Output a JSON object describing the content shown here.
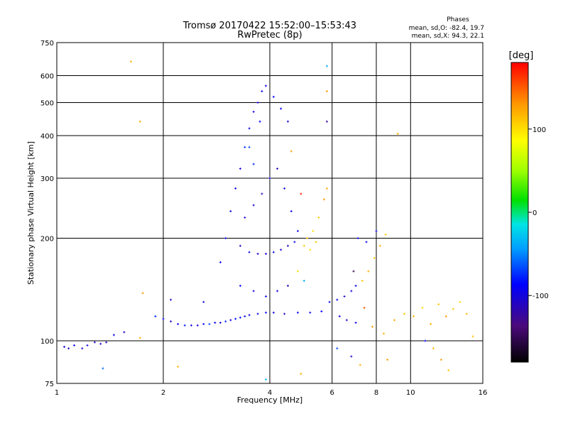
{
  "chart_data": {
    "type": "scatter",
    "title": "Tromsø 20170422 15:52:00–15:53:43",
    "subtitle": "RwPretec (8p)",
    "xlabel": "Frequency [MHz]",
    "ylabel": "Stationary phase Virtual Height [km]",
    "x_scale": "log",
    "y_scale": "log",
    "xlim": [
      1,
      16
    ],
    "ylim": [
      75,
      750
    ],
    "x_ticks": [
      1,
      2,
      4,
      6,
      8,
      10,
      16
    ],
    "x_tick_labels": [
      "1",
      "2",
      "4",
      "6",
      "8",
      "10",
      "16"
    ],
    "y_ticks": [
      75,
      100,
      200,
      300,
      400,
      500,
      600,
      750
    ],
    "y_tick_labels": [
      "75",
      "100",
      "200",
      "300",
      "400",
      "500",
      "600",
      "750"
    ],
    "grid": true,
    "phases": {
      "heading": "Phases",
      "o_line": "mean, sd,O: -82.4, 19.7",
      "x_line": "mean, sd,X: 94.3, 22.1"
    },
    "colorbar": {
      "unit": "[deg]",
      "range": [
        -180,
        180
      ],
      "ticks": [
        100,
        0,
        -100
      ],
      "tick_labels": [
        "100",
        "0",
        "-100"
      ]
    },
    "series": [
      {
        "values": [
          {
            "x": 1.05,
            "y": 96,
            "p": -100
          },
          {
            "x": 1.08,
            "y": 95,
            "p": -110
          },
          {
            "x": 1.12,
            "y": 97,
            "p": -95
          },
          {
            "x": 1.18,
            "y": 95,
            "p": -105
          },
          {
            "x": 1.22,
            "y": 97,
            "p": -100
          },
          {
            "x": 1.28,
            "y": 99,
            "p": -110
          },
          {
            "x": 1.33,
            "y": 98,
            "p": -100
          },
          {
            "x": 1.38,
            "y": 99,
            "p": -115
          },
          {
            "x": 1.45,
            "y": 104,
            "p": -100
          },
          {
            "x": 1.55,
            "y": 106,
            "p": -110
          },
          {
            "x": 1.72,
            "y": 102,
            "p": 120
          },
          {
            "x": 1.62,
            "y": 660,
            "p": 120
          },
          {
            "x": 1.72,
            "y": 440,
            "p": 120
          },
          {
            "x": 1.75,
            "y": 138,
            "p": 130
          },
          {
            "x": 1.9,
            "y": 118,
            "p": -80
          },
          {
            "x": 2.0,
            "y": 116,
            "p": -95
          },
          {
            "x": 2.1,
            "y": 114,
            "p": -110
          },
          {
            "x": 2.2,
            "y": 112,
            "p": -100
          },
          {
            "x": 2.3,
            "y": 111,
            "p": -85
          },
          {
            "x": 2.4,
            "y": 111,
            "p": -105
          },
          {
            "x": 2.5,
            "y": 111,
            "p": -100
          },
          {
            "x": 2.6,
            "y": 112,
            "p": -90
          },
          {
            "x": 2.7,
            "y": 112,
            "p": -70
          },
          {
            "x": 2.8,
            "y": 113,
            "p": -95
          },
          {
            "x": 2.9,
            "y": 113,
            "p": -100
          },
          {
            "x": 3.0,
            "y": 114,
            "p": -80
          },
          {
            "x": 3.1,
            "y": 115,
            "p": -100
          },
          {
            "x": 3.2,
            "y": 116,
            "p": -90
          },
          {
            "x": 3.3,
            "y": 117,
            "p": -85
          },
          {
            "x": 3.4,
            "y": 118,
            "p": -100
          },
          {
            "x": 3.5,
            "y": 119,
            "p": -95
          },
          {
            "x": 3.7,
            "y": 120,
            "p": -100
          },
          {
            "x": 3.9,
            "y": 121,
            "p": -90
          },
          {
            "x": 4.1,
            "y": 121,
            "p": -100
          },
          {
            "x": 4.4,
            "y": 120,
            "p": -110
          },
          {
            "x": 4.8,
            "y": 121,
            "p": -95
          },
          {
            "x": 5.2,
            "y": 121,
            "p": -100
          },
          {
            "x": 5.6,
            "y": 122,
            "p": -90
          },
          {
            "x": 2.1,
            "y": 132,
            "p": -110
          },
          {
            "x": 2.6,
            "y": 130,
            "p": -100
          },
          {
            "x": 2.9,
            "y": 170,
            "p": -90
          },
          {
            "x": 3.0,
            "y": 200,
            "p": -95
          },
          {
            "x": 3.1,
            "y": 240,
            "p": -100
          },
          {
            "x": 3.2,
            "y": 280,
            "p": -95
          },
          {
            "x": 3.3,
            "y": 320,
            "p": -100
          },
          {
            "x": 3.4,
            "y": 370,
            "p": -80
          },
          {
            "x": 3.5,
            "y": 420,
            "p": -95
          },
          {
            "x": 3.6,
            "y": 470,
            "p": -100
          },
          {
            "x": 3.7,
            "y": 500,
            "p": -105
          },
          {
            "x": 3.8,
            "y": 540,
            "p": -95
          },
          {
            "x": 3.9,
            "y": 560,
            "p": -100
          },
          {
            "x": 4.1,
            "y": 520,
            "p": -95
          },
          {
            "x": 4.3,
            "y": 480,
            "p": -90
          },
          {
            "x": 4.5,
            "y": 440,
            "p": -100
          },
          {
            "x": 3.3,
            "y": 190,
            "p": -110
          },
          {
            "x": 3.5,
            "y": 182,
            "p": -100
          },
          {
            "x": 3.7,
            "y": 180,
            "p": -110
          },
          {
            "x": 3.9,
            "y": 180,
            "p": -105
          },
          {
            "x": 4.1,
            "y": 182,
            "p": -100
          },
          {
            "x": 4.3,
            "y": 185,
            "p": -105
          },
          {
            "x": 4.5,
            "y": 190,
            "p": -110
          },
          {
            "x": 4.7,
            "y": 195,
            "p": -100
          },
          {
            "x": 3.4,
            "y": 230,
            "p": -110
          },
          {
            "x": 3.6,
            "y": 250,
            "p": -100
          },
          {
            "x": 3.8,
            "y": 270,
            "p": -115
          },
          {
            "x": 4.0,
            "y": 300,
            "p": -100
          },
          {
            "x": 4.2,
            "y": 320,
            "p": -110
          },
          {
            "x": 4.4,
            "y": 280,
            "p": -100
          },
          {
            "x": 4.6,
            "y": 240,
            "p": -95
          },
          {
            "x": 4.8,
            "y": 210,
            "p": -100
          },
          {
            "x": 3.3,
            "y": 145,
            "p": -90
          },
          {
            "x": 3.6,
            "y": 140,
            "p": -100
          },
          {
            "x": 3.9,
            "y": 135,
            "p": -95
          },
          {
            "x": 4.2,
            "y": 140,
            "p": -100
          },
          {
            "x": 4.5,
            "y": 145,
            "p": -110
          },
          {
            "x": 3.5,
            "y": 370,
            "p": -70
          },
          {
            "x": 3.6,
            "y": 330,
            "p": -80
          },
          {
            "x": 3.75,
            "y": 440,
            "p": -90
          },
          {
            "x": 5.0,
            "y": 190,
            "p": 110
          },
          {
            "x": 5.1,
            "y": 200,
            "p": 120
          },
          {
            "x": 5.3,
            "y": 210,
            "p": 100
          },
          {
            "x": 5.5,
            "y": 230,
            "p": 110
          },
          {
            "x": 5.7,
            "y": 260,
            "p": 130
          },
          {
            "x": 5.8,
            "y": 280,
            "p": 120
          },
          {
            "x": 5.2,
            "y": 185,
            "p": 100
          },
          {
            "x": 5.4,
            "y": 195,
            "p": 110
          },
          {
            "x": 4.9,
            "y": 270,
            "p": 170
          },
          {
            "x": 4.6,
            "y": 360,
            "p": 130
          },
          {
            "x": 4.8,
            "y": 160,
            "p": 100
          },
          {
            "x": 5.0,
            "y": 150,
            "p": -40
          },
          {
            "x": 5.9,
            "y": 130,
            "p": -100
          },
          {
            "x": 6.2,
            "y": 132,
            "p": -90
          },
          {
            "x": 6.5,
            "y": 135,
            "p": -110
          },
          {
            "x": 6.8,
            "y": 140,
            "p": -100
          },
          {
            "x": 7.0,
            "y": 145,
            "p": -95
          },
          {
            "x": 6.3,
            "y": 118,
            "p": -100
          },
          {
            "x": 6.6,
            "y": 115,
            "p": -110
          },
          {
            "x": 7.0,
            "y": 113,
            "p": -100
          },
          {
            "x": 7.3,
            "y": 150,
            "p": 110
          },
          {
            "x": 7.6,
            "y": 160,
            "p": 120
          },
          {
            "x": 7.9,
            "y": 175,
            "p": 110
          },
          {
            "x": 8.2,
            "y": 190,
            "p": 120
          },
          {
            "x": 8.5,
            "y": 205,
            "p": 110
          },
          {
            "x": 7.1,
            "y": 200,
            "p": -90
          },
          {
            "x": 7.5,
            "y": 195,
            "p": -100
          },
          {
            "x": 8.0,
            "y": 210,
            "p": -95
          },
          {
            "x": 6.9,
            "y": 160,
            "p": -150
          },
          {
            "x": 7.4,
            "y": 125,
            "p": 150
          },
          {
            "x": 7.8,
            "y": 110,
            "p": 130
          },
          {
            "x": 8.4,
            "y": 105,
            "p": 120
          },
          {
            "x": 6.2,
            "y": 95,
            "p": -70
          },
          {
            "x": 6.8,
            "y": 90,
            "p": -110
          },
          {
            "x": 7.2,
            "y": 85,
            "p": 120
          },
          {
            "x": 8.6,
            "y": 88,
            "p": 130
          },
          {
            "x": 9.0,
            "y": 115,
            "p": 120
          },
          {
            "x": 9.6,
            "y": 120,
            "p": 110
          },
          {
            "x": 10.2,
            "y": 118,
            "p": 120
          },
          {
            "x": 10.8,
            "y": 125,
            "p": 100
          },
          {
            "x": 11.4,
            "y": 112,
            "p": 120
          },
          {
            "x": 12.0,
            "y": 128,
            "p": 110
          },
          {
            "x": 12.6,
            "y": 118,
            "p": 130
          },
          {
            "x": 13.2,
            "y": 124,
            "p": 110
          },
          {
            "x": 13.8,
            "y": 130,
            "p": 100
          },
          {
            "x": 14.4,
            "y": 120,
            "p": 120
          },
          {
            "x": 15.0,
            "y": 103,
            "p": 110
          },
          {
            "x": 11.0,
            "y": 100,
            "p": -90
          },
          {
            "x": 11.6,
            "y": 95,
            "p": 120
          },
          {
            "x": 12.2,
            "y": 88,
            "p": 130
          },
          {
            "x": 12.8,
            "y": 82,
            "p": 110
          },
          {
            "x": 9.2,
            "y": 405,
            "p": 120
          },
          {
            "x": 5.8,
            "y": 640,
            "p": -40
          },
          {
            "x": 5.8,
            "y": 540,
            "p": 130
          },
          {
            "x": 5.8,
            "y": 440,
            "p": -120
          },
          {
            "x": 4.9,
            "y": 80,
            "p": 120
          },
          {
            "x": 3.9,
            "y": 77,
            "p": -30
          },
          {
            "x": 2.2,
            "y": 84,
            "p": 120
          },
          {
            "x": 1.35,
            "y": 83,
            "p": -60
          }
        ]
      }
    ]
  }
}
